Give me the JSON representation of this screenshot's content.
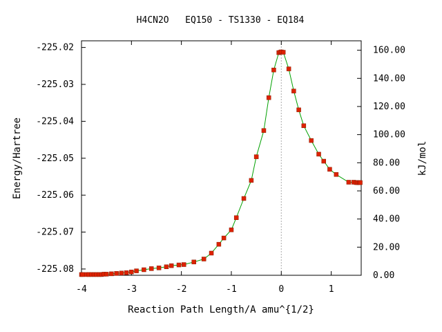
{
  "chart_data": {
    "type": "line",
    "title": "H4CN2O   EQ150 - TS1330 - EQ184",
    "xlabel": "Reaction Path Length/A amu^{1/2}",
    "ylabel": "Energy/Hartree",
    "y2label": "kJ/mol",
    "xlim": [
      -4.0,
      1.6
    ],
    "ylim": [
      -225.0817,
      -225.0182
    ],
    "y2lim": [
      0.0,
      166.7
    ],
    "x_ticks": [
      "-4",
      "-3",
      "-2",
      "-1",
      "0",
      "1"
    ],
    "x_tick_values": [
      -4,
      -3,
      -2,
      -1,
      0,
      1
    ],
    "y_ticks": [
      "-225.02",
      "-225.03",
      "-225.04",
      "-225.05",
      "-225.06",
      "-225.07",
      "-225.08"
    ],
    "y_tick_values": [
      -225.02,
      -225.03,
      -225.04,
      -225.05,
      -225.06,
      -225.07,
      -225.08
    ],
    "y2_ticks": [
      "160.00",
      "140.00",
      "120.00",
      "100.00",
      "80.00",
      "60.00",
      "40.00",
      "20.00",
      "0.00"
    ],
    "y2_tick_values": [
      160,
      140,
      120,
      100,
      80,
      60,
      40,
      20,
      0
    ],
    "ts_x": 0.0,
    "grid": false,
    "colors": {
      "line": "#00a000",
      "marker": "#dd2200",
      "ts_line": "#aaaaaa"
    },
    "series": [
      {
        "x": [
          -4.0,
          -3.98,
          -3.9,
          -3.85,
          -3.8,
          -3.75,
          -3.7,
          -3.65,
          -3.6,
          -3.55,
          -3.5,
          -3.4,
          -3.3,
          -3.2,
          -3.1,
          -3.0,
          -2.9,
          -2.75,
          -2.6,
          -2.45,
          -2.3,
          -2.2,
          -2.05,
          -1.95,
          -1.75,
          -1.55,
          -1.4,
          -1.25,
          -1.15,
          -1.0,
          -0.9,
          -0.75,
          -0.6,
          -0.5,
          -0.35,
          -0.25,
          -0.15,
          -0.05,
          -0.02,
          0.0,
          0.04,
          0.15,
          0.25,
          0.35,
          0.45,
          0.6,
          0.75,
          0.85,
          0.97,
          1.1,
          1.35,
          1.45,
          1.5,
          1.53,
          1.56,
          1.58
        ],
        "y": [
          -225.0815,
          -225.0815,
          -225.0815,
          -225.0815,
          -225.0815,
          -225.0815,
          -225.0815,
          -225.0815,
          -225.0815,
          -225.0814,
          -225.0814,
          -225.0813,
          -225.0812,
          -225.0811,
          -225.081,
          -225.0808,
          -225.0805,
          -225.0802,
          -225.0799,
          -225.0797,
          -225.0794,
          -225.0791,
          -225.0789,
          -225.0788,
          -225.0781,
          -225.0773,
          -225.0757,
          -225.0733,
          -225.0716,
          -225.0694,
          -225.0661,
          -225.0609,
          -225.056,
          -225.0496,
          -225.0425,
          -225.0336,
          -225.0261,
          -225.0214,
          -225.0213,
          -225.0212,
          -225.0213,
          -225.0258,
          -225.0318,
          -225.0369,
          -225.0412,
          -225.0452,
          -225.0489,
          -225.0508,
          -225.053,
          -225.0544,
          -225.0565,
          -225.0565,
          -225.0566,
          -225.0566,
          -225.0566,
          -225.0566
        ]
      }
    ]
  }
}
